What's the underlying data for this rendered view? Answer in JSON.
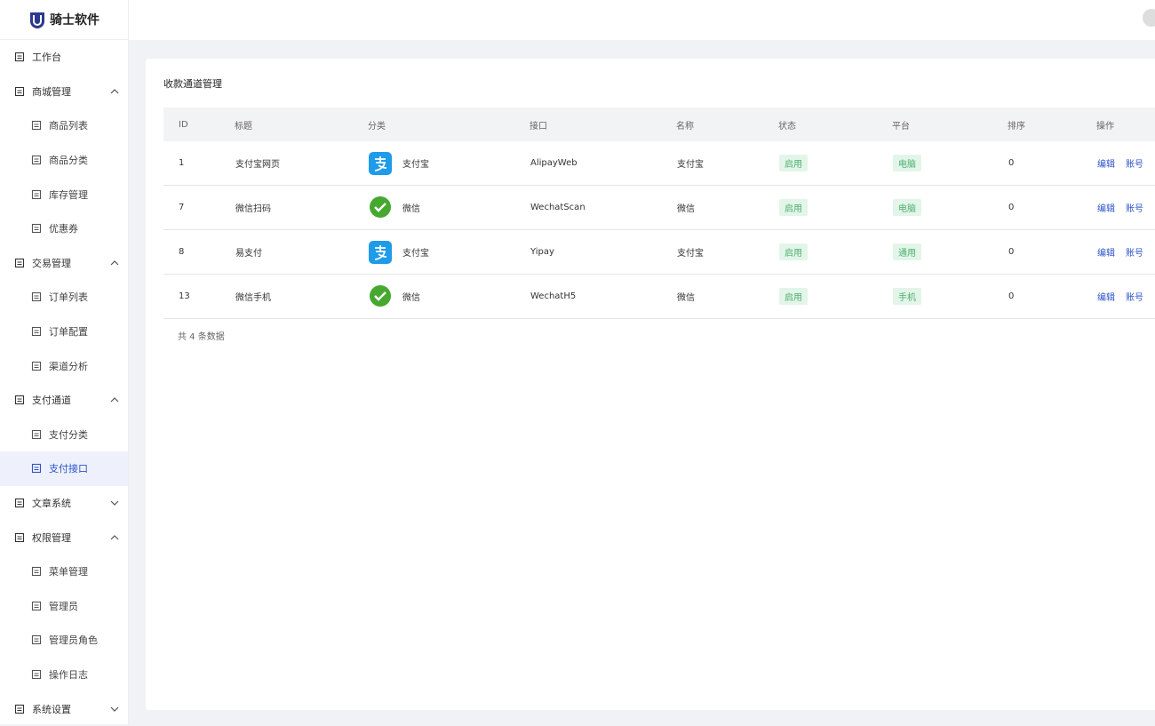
{
  "brand": "骑士软件",
  "menu": [
    {
      "label": "工作台"
    },
    {
      "label": "商城管理",
      "expanded": true,
      "children": [
        {
          "label": "商品列表"
        },
        {
          "label": "商品分类"
        },
        {
          "label": "库存管理"
        },
        {
          "label": "优惠券"
        }
      ]
    },
    {
      "label": "交易管理",
      "expanded": true,
      "children": [
        {
          "label": "订单列表"
        },
        {
          "label": "订单配置"
        },
        {
          "label": "渠道分析"
        }
      ]
    },
    {
      "label": "支付通道",
      "expanded": true,
      "children": [
        {
          "label": "支付分类"
        },
        {
          "label": "支付接口",
          "active": true
        }
      ]
    },
    {
      "label": "文章系统",
      "expanded": false
    },
    {
      "label": "权限管理",
      "expanded": true,
      "children": [
        {
          "label": "菜单管理"
        },
        {
          "label": "管理员"
        },
        {
          "label": "管理员角色"
        },
        {
          "label": "操作日志"
        }
      ]
    },
    {
      "label": "系统设置",
      "expanded": false
    }
  ],
  "page": {
    "title": "收款通道管理",
    "columns": [
      "ID",
      "标题",
      "分类",
      "接口",
      "名称",
      "状态",
      "平台",
      "排序",
      "操作"
    ],
    "rows": [
      {
        "id": 1,
        "title": "支付宝网页",
        "category": "支付宝",
        "icon": "alipay",
        "interface": "AlipayWeb",
        "name": "支付宝",
        "status": "启用",
        "platform": "电脑",
        "sort": 0
      },
      {
        "id": 7,
        "title": "微信扫码",
        "category": "微信",
        "icon": "wechat",
        "interface": "WechatScan",
        "name": "微信",
        "status": "启用",
        "platform": "电脑",
        "sort": 0
      },
      {
        "id": 8,
        "title": "易支付",
        "category": "支付宝",
        "icon": "alipay",
        "interface": "Yipay",
        "name": "支付宝",
        "status": "启用",
        "platform": "通用",
        "sort": 0
      },
      {
        "id": 13,
        "title": "微信手机",
        "category": "微信",
        "icon": "wechat",
        "interface": "WechatH5",
        "name": "微信",
        "status": "启用",
        "platform": "手机",
        "sort": 0
      }
    ],
    "actions": [
      "编辑",
      "账号"
    ],
    "total": "共 4 条数据"
  }
}
